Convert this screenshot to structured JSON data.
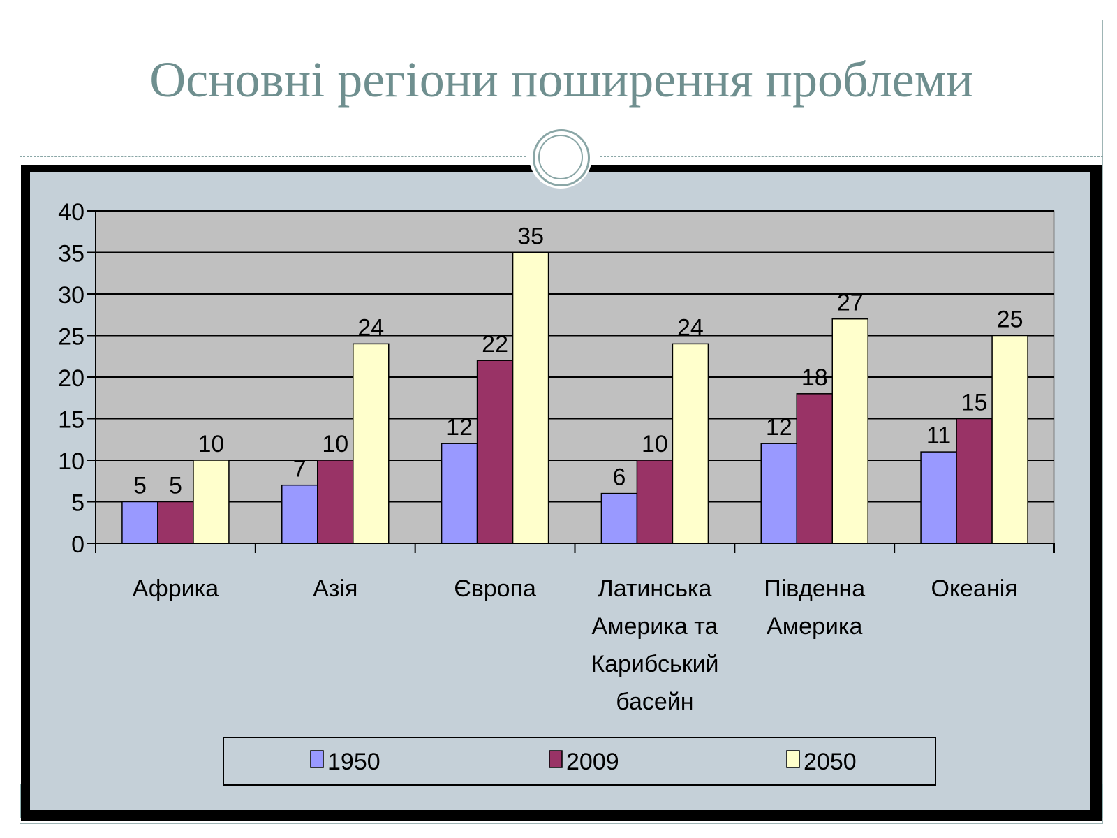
{
  "slide": {
    "title": "Основні регіони поширення проблеми"
  },
  "colors": {
    "title": "#6f8f8f",
    "chart_bg": "#c5d0d8",
    "plot_bg": "#c0c0c0",
    "series_1950": "#9999ff",
    "series_2009": "#993366",
    "series_2050": "#ffffcc"
  },
  "chart_data": {
    "type": "bar",
    "title": "",
    "xlabel": "",
    "ylabel": "",
    "ylim": [
      0,
      40
    ],
    "yticks": [
      "0",
      "5",
      "10",
      "15",
      "20",
      "25",
      "30",
      "35",
      "40"
    ],
    "grid": true,
    "legend_position": "bottom",
    "categories": [
      [
        "Африка"
      ],
      [
        "Азія"
      ],
      [
        "Європа"
      ],
      [
        "Латинська",
        "Америка та",
        "Карибський",
        "басейн"
      ],
      [
        "Південна",
        "Америка"
      ],
      [
        "Океанія"
      ]
    ],
    "series": [
      {
        "name": "1950",
        "color": "#9999ff",
        "values": [
          5,
          7,
          12,
          6,
          12,
          11
        ]
      },
      {
        "name": "2009",
        "color": "#993366",
        "values": [
          5,
          10,
          22,
          10,
          18,
          15
        ]
      },
      {
        "name": "2050",
        "color": "#ffffcc",
        "values": [
          10,
          24,
          35,
          24,
          27,
          25
        ]
      }
    ]
  }
}
